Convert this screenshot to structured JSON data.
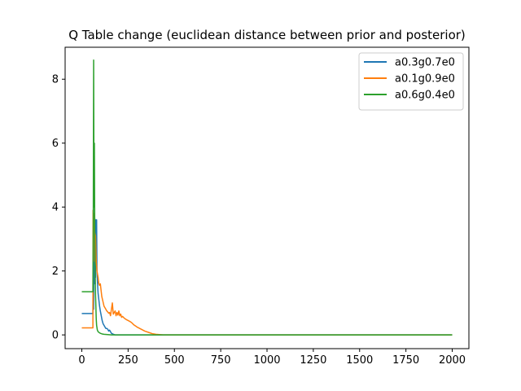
{
  "chart_data": {
    "type": "line",
    "title": "Q Table change (euclidean distance between prior and posterior)",
    "xlabel": "",
    "ylabel": "",
    "xlim": [
      -90,
      2090
    ],
    "ylim": [
      -0.43,
      9.0
    ],
    "x_ticks": [
      0,
      250,
      500,
      750,
      1000,
      1250,
      1500,
      1750,
      2000
    ],
    "y_ticks": [
      0,
      2,
      4,
      6,
      8
    ],
    "grid": false,
    "legend_position": "top-right",
    "series": [
      {
        "name": "a0.3g0.7e0",
        "color": "#1f77b4",
        "points": [
          [
            0,
            0.67
          ],
          [
            60,
            0.67
          ],
          [
            60,
            0.67
          ],
          [
            62,
            2.5
          ],
          [
            64,
            0.8
          ],
          [
            66,
            3.2
          ],
          [
            68,
            1.6
          ],
          [
            70,
            3.65
          ],
          [
            72,
            2.2
          ],
          [
            74,
            1.8
          ],
          [
            76,
            3.6
          ],
          [
            78,
            3.5
          ],
          [
            80,
            3.6
          ],
          [
            82,
            2.0
          ],
          [
            85,
            1.6
          ],
          [
            88,
            1.3
          ],
          [
            92,
            1.1
          ],
          [
            96,
            0.9
          ],
          [
            100,
            0.75
          ],
          [
            105,
            0.6
          ],
          [
            110,
            0.45
          ],
          [
            115,
            0.35
          ],
          [
            120,
            0.3
          ],
          [
            125,
            0.25
          ],
          [
            130,
            0.2
          ],
          [
            135,
            0.2
          ],
          [
            140,
            0.18
          ],
          [
            145,
            0.12
          ],
          [
            150,
            0.15
          ],
          [
            155,
            0.1
          ],
          [
            160,
            0.05
          ],
          [
            170,
            0.02
          ],
          [
            180,
            0.0
          ],
          [
            300,
            0.0
          ],
          [
            1000,
            0.0
          ],
          [
            2000,
            0.0
          ]
        ]
      },
      {
        "name": "a0.1g0.9e0",
        "color": "#ff7f0e",
        "points": [
          [
            0,
            0.22
          ],
          [
            60,
            0.22
          ],
          [
            61,
            3.9
          ],
          [
            63,
            2.3
          ],
          [
            66,
            3.8
          ],
          [
            70,
            3.2
          ],
          [
            74,
            3.1
          ],
          [
            78,
            2.3
          ],
          [
            82,
            2.0
          ],
          [
            88,
            1.8
          ],
          [
            92,
            1.6
          ],
          [
            96,
            1.55
          ],
          [
            100,
            1.6
          ],
          [
            104,
            1.4
          ],
          [
            108,
            1.2
          ],
          [
            112,
            1.1
          ],
          [
            116,
            1.0
          ],
          [
            120,
            0.9
          ],
          [
            125,
            0.85
          ],
          [
            130,
            0.8
          ],
          [
            135,
            0.75
          ],
          [
            140,
            0.72
          ],
          [
            145,
            0.68
          ],
          [
            150,
            0.7
          ],
          [
            155,
            0.6
          ],
          [
            160,
            0.8
          ],
          [
            165,
            1.0
          ],
          [
            170,
            0.65
          ],
          [
            175,
            0.7
          ],
          [
            180,
            0.75
          ],
          [
            185,
            0.6
          ],
          [
            190,
            0.7
          ],
          [
            195,
            0.62
          ],
          [
            200,
            0.75
          ],
          [
            205,
            0.6
          ],
          [
            210,
            0.65
          ],
          [
            215,
            0.55
          ],
          [
            220,
            0.58
          ],
          [
            230,
            0.52
          ],
          [
            240,
            0.48
          ],
          [
            250,
            0.45
          ],
          [
            260,
            0.42
          ],
          [
            270,
            0.38
          ],
          [
            280,
            0.32
          ],
          [
            290,
            0.28
          ],
          [
            300,
            0.24
          ],
          [
            320,
            0.18
          ],
          [
            340,
            0.12
          ],
          [
            360,
            0.08
          ],
          [
            380,
            0.04
          ],
          [
            400,
            0.02
          ],
          [
            420,
            0.01
          ],
          [
            440,
            0.0
          ],
          [
            1000,
            0.0
          ],
          [
            2000,
            0.0
          ]
        ]
      },
      {
        "name": "a0.6g0.4e0",
        "color": "#2ca02c",
        "points": [
          [
            0,
            1.35
          ],
          [
            60,
            1.35
          ],
          [
            62,
            3.5
          ],
          [
            64,
            8.6
          ],
          [
            66,
            4.0
          ],
          [
            68,
            6.0
          ],
          [
            70,
            3.2
          ],
          [
            72,
            2.0
          ],
          [
            74,
            1.3
          ],
          [
            76,
            0.9
          ],
          [
            78,
            0.5
          ],
          [
            80,
            0.3
          ],
          [
            84,
            0.15
          ],
          [
            88,
            0.1
          ],
          [
            92,
            0.08
          ],
          [
            100,
            0.05
          ],
          [
            110,
            0.03
          ],
          [
            120,
            0.02
          ],
          [
            140,
            0.01
          ],
          [
            160,
            0.0
          ],
          [
            500,
            0.0
          ],
          [
            2000,
            0.0
          ]
        ]
      }
    ]
  }
}
